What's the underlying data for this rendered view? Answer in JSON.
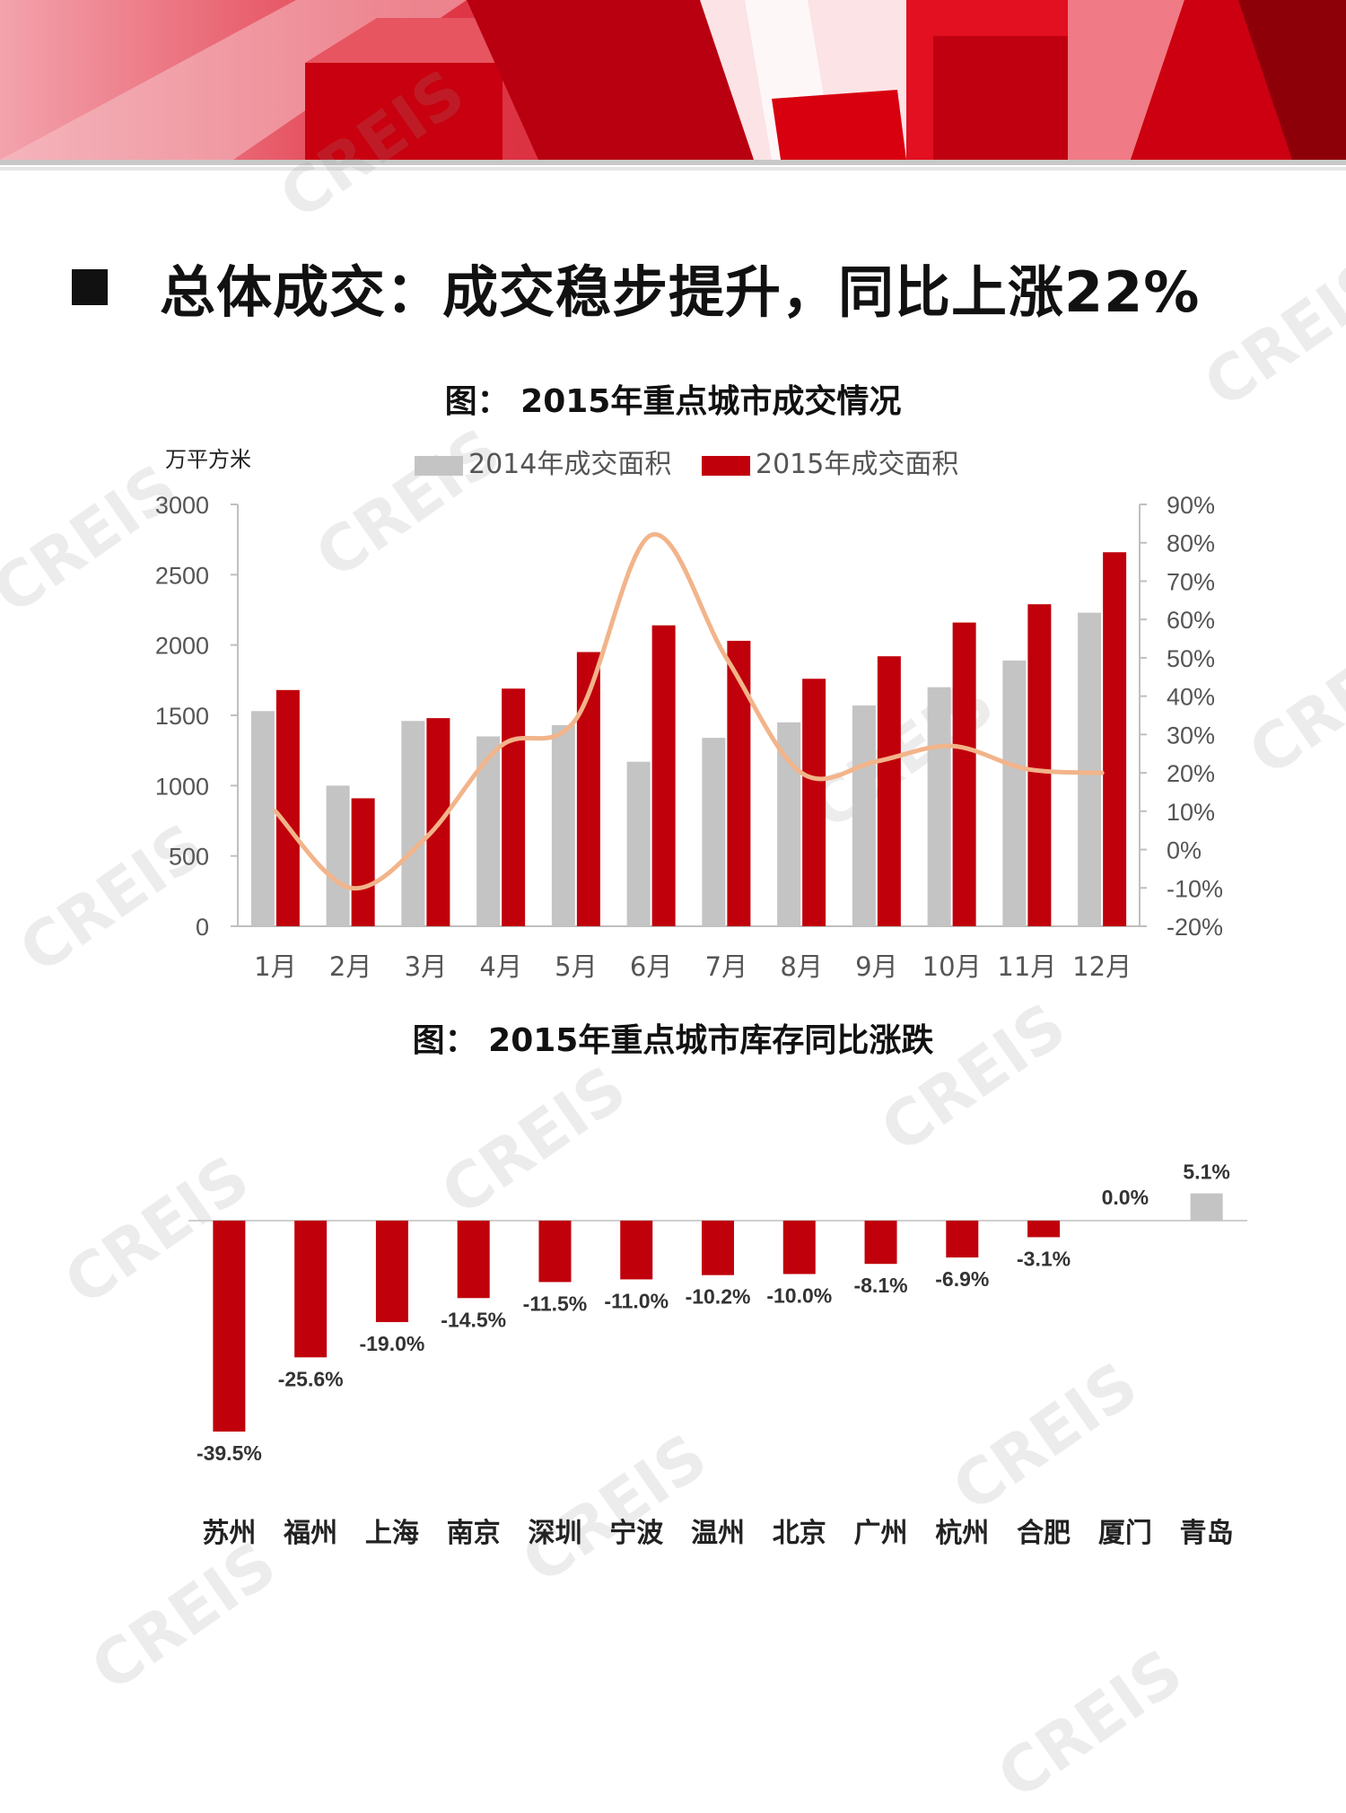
{
  "headline": "总体成交：成交稳步提升，同比上涨22%",
  "watermark": "CREIS",
  "colors": {
    "red": "#c0000b",
    "gray": "#c4c4c4",
    "line": "#f2b48a"
  },
  "chart_data": [
    {
      "type": "bar",
      "title": "图： 2015年重点城市成交情况",
      "ylabel": "万平方米",
      "categories": [
        "1月",
        "2月",
        "3月",
        "4月",
        "5月",
        "6月",
        "7月",
        "8月",
        "9月",
        "10月",
        "11月",
        "12月"
      ],
      "series": [
        {
          "name": "2014年成交面积",
          "values": [
            1530,
            1000,
            1460,
            1350,
            1430,
            1170,
            1340,
            1450,
            1570,
            1700,
            1890,
            2230
          ]
        },
        {
          "name": "2015年成交面积",
          "values": [
            1680,
            910,
            1480,
            1690,
            1950,
            2140,
            2030,
            1760,
            1920,
            2160,
            2290,
            2660
          ]
        }
      ],
      "line_series": {
        "values": [
          10,
          -10,
          3,
          27,
          34,
          82,
          50,
          20,
          23,
          27,
          21,
          20
        ]
      },
      "ylim": [
        0,
        3000
      ],
      "yticks": [
        "0",
        "500",
        "1000",
        "1500",
        "2000",
        "2500",
        "3000"
      ],
      "y2lim": [
        -20,
        90
      ],
      "y2ticks": [
        "-20%",
        "-10%",
        "0%",
        "10%",
        "20%",
        "30%",
        "40%",
        "50%",
        "60%",
        "70%",
        "80%",
        "90%"
      ],
      "legend_position": "top-center"
    },
    {
      "type": "bar",
      "title": "图： 2015年重点城市库存同比涨跌",
      "categories": [
        "苏州",
        "福州",
        "上海",
        "南京",
        "深圳",
        "宁波",
        "温州",
        "北京",
        "广州",
        "杭州",
        "合肥",
        "厦门",
        "青岛"
      ],
      "values": [
        -39.5,
        -25.6,
        -19.0,
        -14.5,
        -11.5,
        -11.0,
        -10.2,
        -10.0,
        -8.1,
        -6.9,
        -3.1,
        0.0,
        5.1
      ],
      "data_labels": [
        "-39.5%",
        "-25.6%",
        "-19.0%",
        "-14.5%",
        "-11.5%",
        "-11.0%",
        "-10.2%",
        "-10.0%",
        "-8.1%",
        "-6.9%",
        "-3.1%",
        "0.0%",
        "5.1%"
      ]
    }
  ]
}
